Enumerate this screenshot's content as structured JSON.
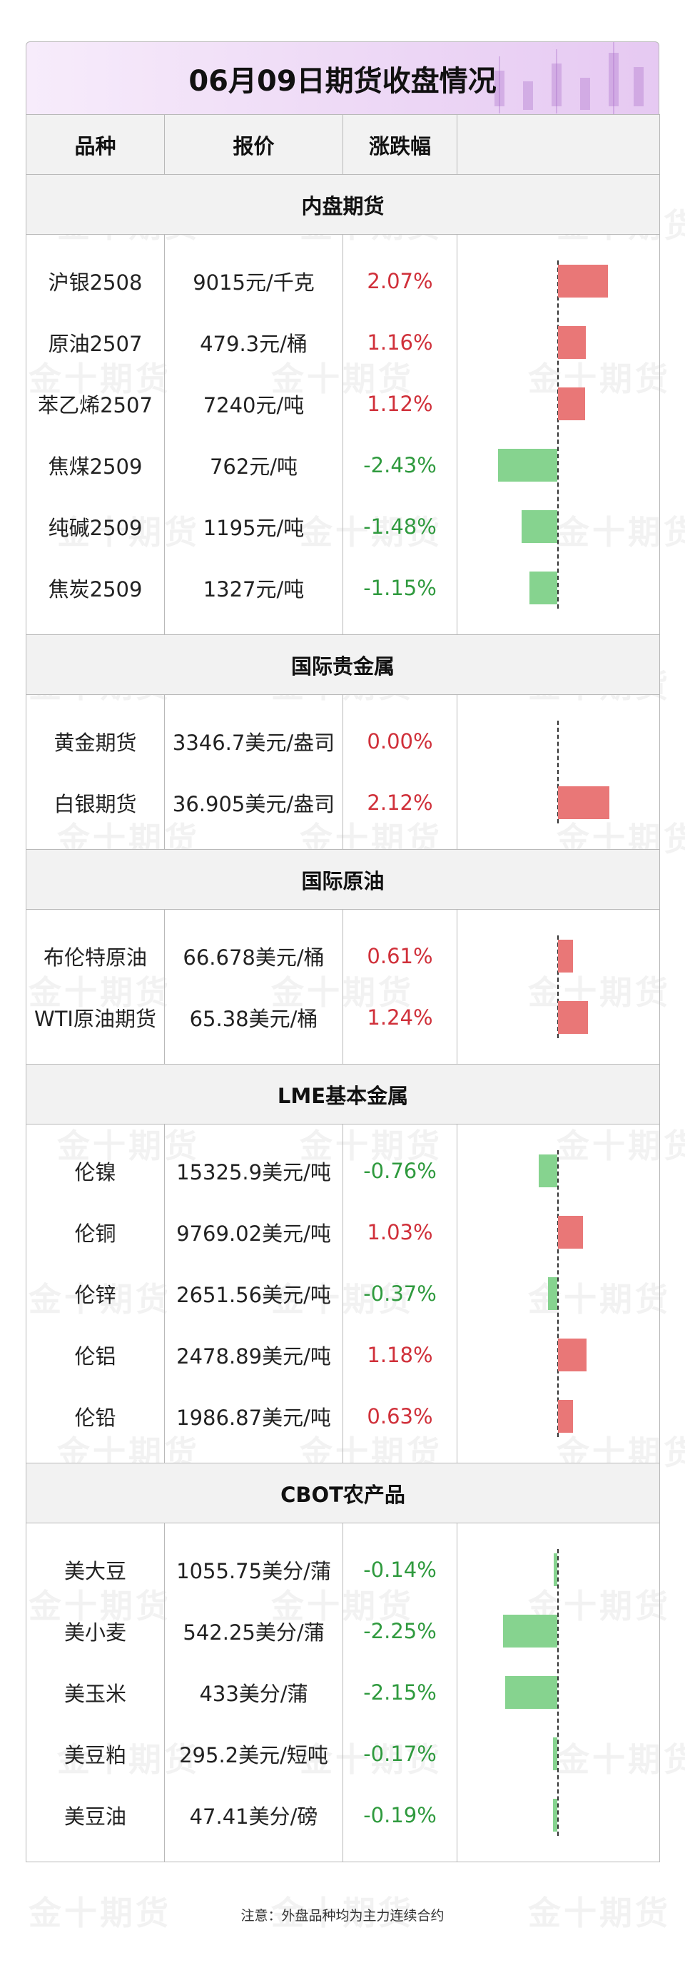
{
  "title": "06月09日期货收盘情况",
  "headers": [
    "品种",
    "报价",
    "涨跌幅"
  ],
  "watermark": "金十期货",
  "colors": {
    "up": "#d0303a",
    "down": "#2f9a3e",
    "up_bar": "#e97777",
    "down_bar": "#86d38f",
    "title_bg": "#eedaf6"
  },
  "sections": [
    {
      "name": "内盘期货",
      "rows": [
        {
          "name": "沪银2508",
          "price": "9015元/千克",
          "change": "2.07%",
          "pct": 2.07
        },
        {
          "name": "原油2507",
          "price": "479.3元/桶",
          "change": "1.16%",
          "pct": 1.16
        },
        {
          "name": "苯乙烯2507",
          "price": "7240元/吨",
          "change": "1.12%",
          "pct": 1.12
        },
        {
          "name": "焦煤2509",
          "price": "762元/吨",
          "change": "-2.43%",
          "pct": -2.43
        },
        {
          "name": "纯碱2509",
          "price": "1195元/吨",
          "change": "-1.48%",
          "pct": -1.48
        },
        {
          "name": "焦炭2509",
          "price": "1327元/吨",
          "change": "-1.15%",
          "pct": -1.15
        }
      ]
    },
    {
      "name": "国际贵金属",
      "rows": [
        {
          "name": "黄金期货",
          "price": "3346.7美元/盎司",
          "change": "0.00%",
          "pct": 0
        },
        {
          "name": "白银期货",
          "price": "36.905美元/盎司",
          "change": "2.12%",
          "pct": 2.12
        }
      ]
    },
    {
      "name": "国际原油",
      "rows": [
        {
          "name": "布伦特原油",
          "price": "66.678美元/桶",
          "change": "0.61%",
          "pct": 0.61
        },
        {
          "name": "WTI原油期货",
          "price": "65.38美元/桶",
          "change": "1.24%",
          "pct": 1.24
        }
      ]
    },
    {
      "name": "LME基本金属",
      "rows": [
        {
          "name": "伦镍",
          "price": "15325.9美元/吨",
          "change": "-0.76%",
          "pct": -0.76
        },
        {
          "name": "伦铜",
          "price": "9769.02美元/吨",
          "change": "1.03%",
          "pct": 1.03
        },
        {
          "name": "伦锌",
          "price": "2651.56美元/吨",
          "change": "-0.37%",
          "pct": -0.37
        },
        {
          "name": "伦铝",
          "price": "2478.89美元/吨",
          "change": "1.18%",
          "pct": 1.18
        },
        {
          "name": "伦铅",
          "price": "1986.87美元/吨",
          "change": "0.63%",
          "pct": 0.63
        }
      ]
    },
    {
      "name": "CBOT农产品",
      "rows": [
        {
          "name": "美大豆",
          "price": "1055.75美分/蒲",
          "change": "-0.14%",
          "pct": -0.14
        },
        {
          "name": "美小麦",
          "price": "542.25美分/蒲",
          "change": "-2.25%",
          "pct": -2.25
        },
        {
          "name": "美玉米",
          "price": "433美分/蒲",
          "change": "-2.15%",
          "pct": -2.15
        },
        {
          "name": "美豆粕",
          "price": "295.2美元/短吨",
          "change": "-0.17%",
          "pct": -0.17
        },
        {
          "name": "美豆油",
          "price": "47.41美分/磅",
          "change": "-0.19%",
          "pct": -0.19
        }
      ]
    }
  ],
  "note": "注意：外盘品种均为主力连续合约"
}
